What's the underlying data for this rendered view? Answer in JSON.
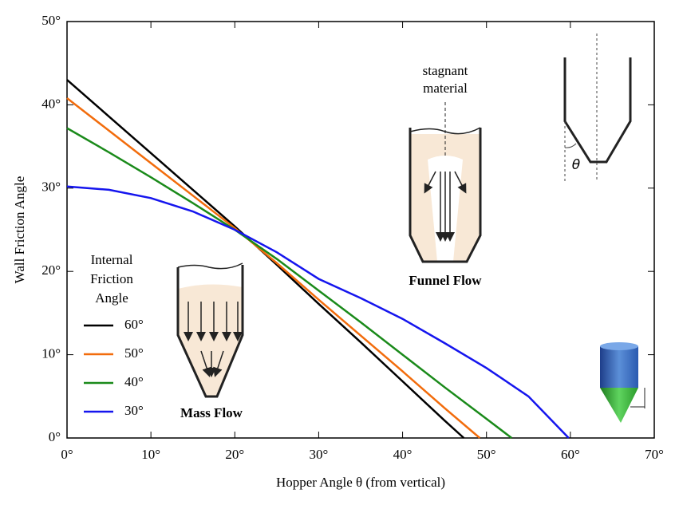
{
  "chart_data": {
    "type": "line",
    "x_label": "Hopper Angle  θ  (from vertical)",
    "y_label": "Wall Friction Angle",
    "xlim": [
      0,
      70
    ],
    "xticks": [
      {
        "value": 0,
        "label": "0°"
      },
      {
        "value": 10,
        "label": "10°"
      },
      {
        "value": 20,
        "label": "20°"
      },
      {
        "value": 30,
        "label": "30°"
      },
      {
        "value": 40,
        "label": "40°"
      },
      {
        "value": 50,
        "label": "50°"
      },
      {
        "value": 60,
        "label": "60°"
      },
      {
        "value": 70,
        "label": "70°"
      }
    ],
    "ylim": [
      0,
      50
    ],
    "yticks": [
      {
        "value": 0,
        "label": "0°"
      },
      {
        "value": 10,
        "label": "10°"
      },
      {
        "value": 20,
        "label": "20°"
      },
      {
        "value": 30,
        "label": "30°"
      },
      {
        "value": 40,
        "label": "40°"
      },
      {
        "value": 50,
        "label": "50°"
      }
    ],
    "legend_title": [
      "Internal",
      "Friction",
      "Angle"
    ],
    "series": [
      {
        "name": "60°",
        "color": "#000000",
        "x": [
          0,
          5,
          10,
          15,
          20,
          25,
          30,
          35,
          40,
          45,
          47.3
        ],
        "values": [
          43,
          38.6,
          34.2,
          29.8,
          25.4,
          20.8,
          16.1,
          11.5,
          6.8,
          2.1,
          0
        ]
      },
      {
        "name": "50°",
        "color": "#f26c0c",
        "x": [
          0,
          5,
          10,
          15,
          20,
          25,
          30,
          35,
          40,
          45,
          49.2
        ],
        "values": [
          40.8,
          36.9,
          33.0,
          29.1,
          25.2,
          21.0,
          16.6,
          12.3,
          8.0,
          3.6,
          0
        ]
      },
      {
        "name": "40°",
        "color": "#1a8a1a",
        "x": [
          0,
          5,
          10,
          15,
          20,
          25,
          30,
          35,
          40,
          45,
          50,
          53
        ],
        "values": [
          37.2,
          34.3,
          31.3,
          28.2,
          25.0,
          21.5,
          17.7,
          13.9,
          10.0,
          6.1,
          2.3,
          0
        ]
      },
      {
        "name": "30°",
        "color": "#1515ee",
        "x": [
          0,
          5,
          10,
          15,
          20,
          25,
          30,
          35,
          40,
          45,
          50,
          55,
          59.8
        ],
        "values": [
          30.2,
          29.8,
          28.8,
          27.2,
          25.0,
          22.3,
          19.1,
          16.8,
          14.3,
          11.4,
          8.4,
          5.0,
          0
        ]
      }
    ],
    "annotations": {
      "stagnant": [
        "stagnant",
        "material"
      ],
      "funnel": "Funnel Flow",
      "mass": "Mass Flow",
      "theta": "θ"
    }
  }
}
